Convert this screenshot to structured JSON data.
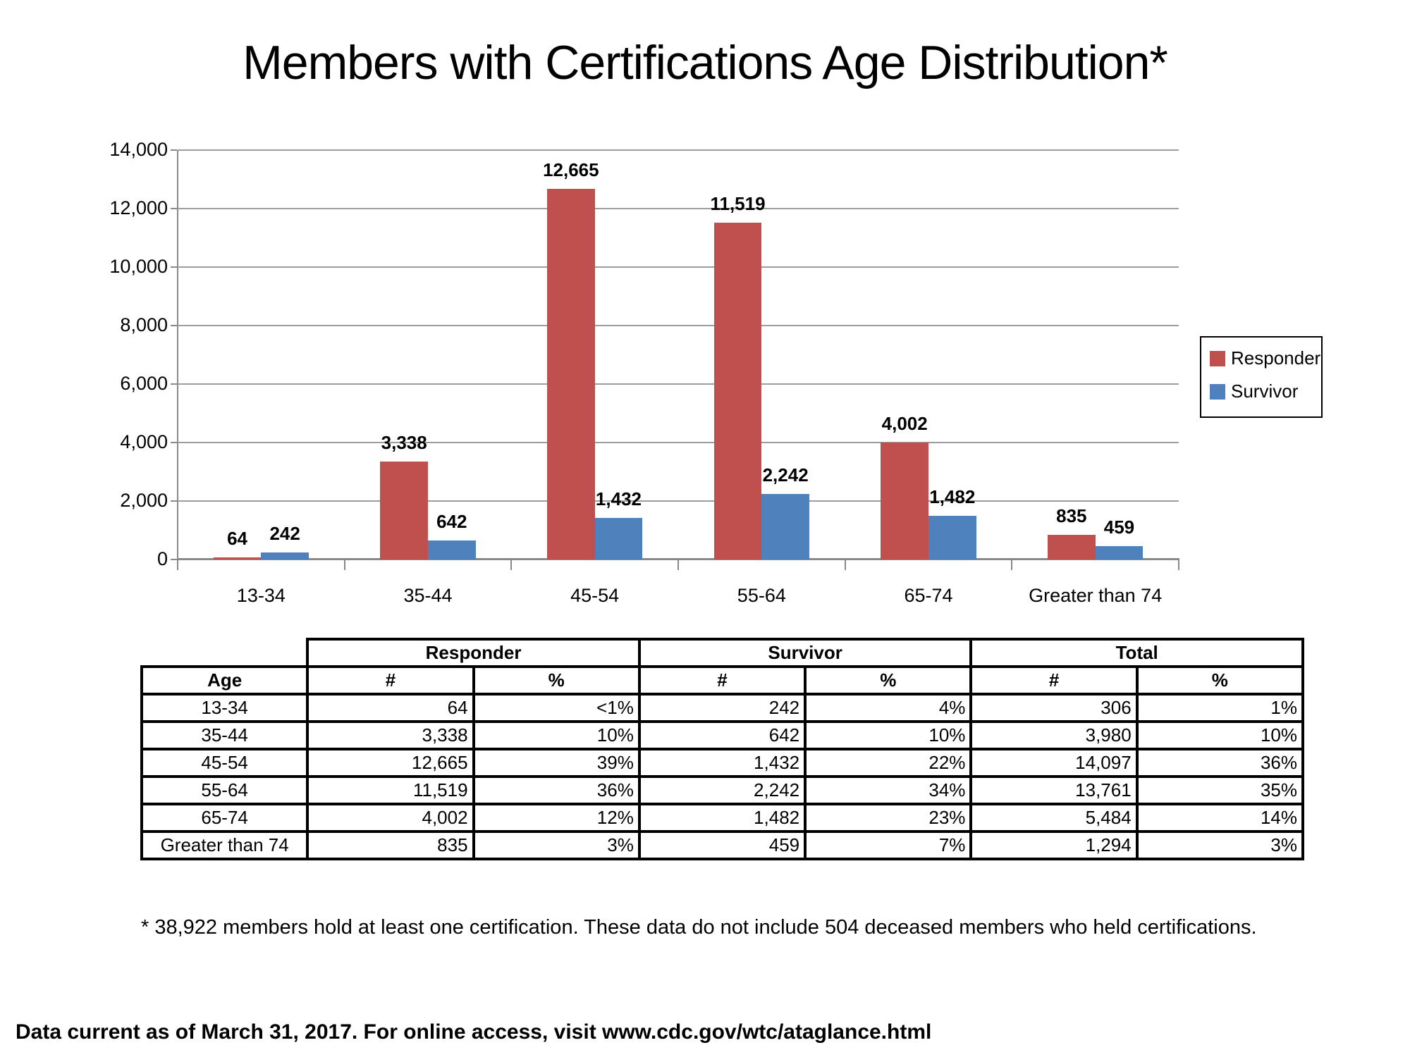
{
  "title": "Members with Certifications Age Distribution*",
  "footnote": "* 38,922 members hold at least one certification. These data do not include 504 deceased members who held certifications.",
  "footer": "Data current as of March 31, 2017. For online access, visit www.cdc.gov/wtc/ataglance.html",
  "colors": {
    "responder": "#bf504d",
    "survivor": "#4f81bd",
    "gridline": "#9d9d9d",
    "axis": "#898989"
  },
  "chart_data": {
    "type": "bar",
    "categories": [
      "13-34",
      "35-44",
      "45-54",
      "55-64",
      "65-74",
      "Greater than 74"
    ],
    "series": [
      {
        "name": "Responder",
        "color": "#bf504d",
        "values": [
          64,
          3338,
          12665,
          11519,
          4002,
          835
        ]
      },
      {
        "name": "Survivor",
        "color": "#4f81bd",
        "values": [
          242,
          642,
          1432,
          2242,
          1482,
          459
        ]
      }
    ],
    "data_labels": [
      "64",
      "242",
      "3,338",
      "642",
      "12,665",
      "1,432",
      "11,519",
      "2,242",
      "4,002",
      "1,482",
      "835",
      "459"
    ],
    "title": "Members with Certifications Age Distribution*",
    "xlabel": "",
    "ylabel": "",
    "ylim": [
      0,
      14000
    ],
    "ytick_step": 2000,
    "ytick_labels": [
      "0",
      "2,000",
      "4,000",
      "6,000",
      "8,000",
      "10,000",
      "12,000",
      "14,000"
    ],
    "grid": true,
    "legend_position": "right"
  },
  "legend": {
    "items": [
      {
        "label": "Responder",
        "color": "#bf504d"
      },
      {
        "label": "Survivor",
        "color": "#4f81bd"
      }
    ]
  },
  "table": {
    "group_headers": [
      {
        "label": "Responder",
        "span": 2
      },
      {
        "label": "Survivor",
        "span": 2
      },
      {
        "label": "Total",
        "span": 2
      }
    ],
    "col_headers": [
      "Age",
      "#",
      "%",
      "#",
      "%",
      "#",
      "%"
    ],
    "rows": [
      [
        "13-34",
        "64",
        "<1%",
        "242",
        "4%",
        "306",
        "1%"
      ],
      [
        "35-44",
        "3,338",
        "10%",
        "642",
        "10%",
        "3,980",
        "10%"
      ],
      [
        "45-54",
        "12,665",
        "39%",
        "1,432",
        "22%",
        "14,097",
        "36%"
      ],
      [
        "55-64",
        "11,519",
        "36%",
        "2,242",
        "34%",
        "13,761",
        "35%"
      ],
      [
        "65-74",
        "4,002",
        "12%",
        "1,482",
        "23%",
        "5,484",
        "14%"
      ],
      [
        "Greater than 74",
        "835",
        "3%",
        "459",
        "7%",
        "1,294",
        "3%"
      ]
    ]
  }
}
